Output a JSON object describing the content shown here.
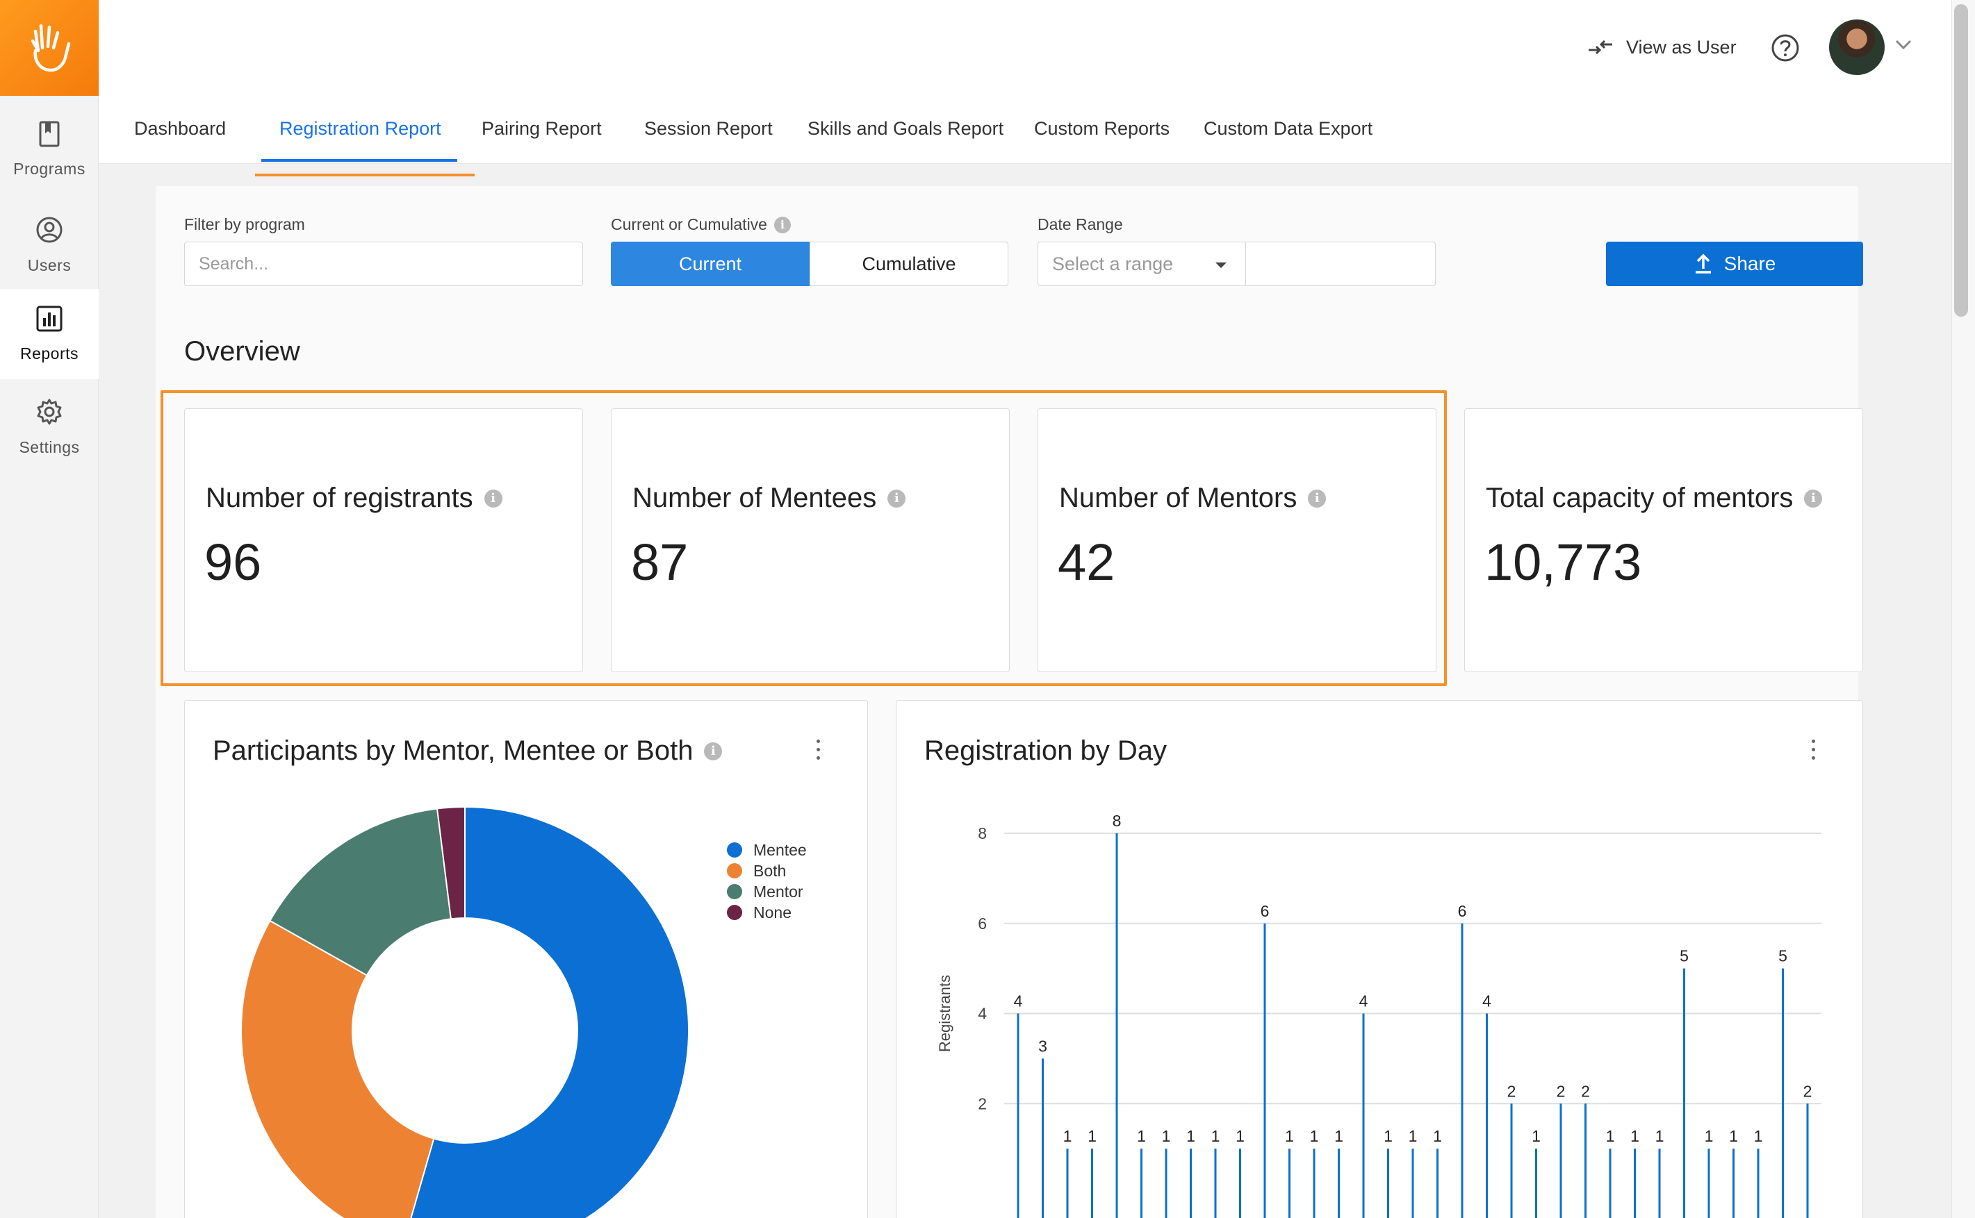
{
  "sidebar": {
    "items": [
      {
        "label": "Programs",
        "icon": "book-icon",
        "active": false
      },
      {
        "label": "Users",
        "icon": "user-circle-icon",
        "active": false
      },
      {
        "label": "Reports",
        "icon": "bar-chart-icon",
        "active": true
      },
      {
        "label": "Settings",
        "icon": "gear-icon",
        "active": false
      }
    ],
    "logo": "hand-logo"
  },
  "header": {
    "view_as_user": "View as User"
  },
  "tabs": [
    {
      "label": "Dashboard"
    },
    {
      "label": "Registration Report",
      "active": true
    },
    {
      "label": "Pairing Report"
    },
    {
      "label": "Session Report"
    },
    {
      "label": "Skills and Goals Report"
    },
    {
      "label": "Custom Reports"
    },
    {
      "label": "Custom Data Export"
    }
  ],
  "filters": {
    "program_label": "Filter by program",
    "program_placeholder": "Search...",
    "mode_label": "Current or Cumulative",
    "mode_current": "Current",
    "mode_cumulative": "Cumulative",
    "date_label": "Date Range",
    "date_placeholder": "Select a range",
    "share_label": "Share"
  },
  "overview": {
    "title": "Overview",
    "cards": [
      {
        "label": "Number of registrants",
        "value": "96"
      },
      {
        "label": "Number of Mentees",
        "value": "87"
      },
      {
        "label": "Number of Mentors",
        "value": "42"
      },
      {
        "label": "Total capacity of mentors",
        "value": "10,773"
      }
    ]
  },
  "charts": {
    "participants_title": "Participants by Mentor, Mentee or Both",
    "registration_title": "Registration by Day"
  },
  "colors": {
    "accent": "#1a73e8",
    "brand_orange": "#f4912b",
    "share_button": "#0b6fd3",
    "mentee": "#0b6fd3",
    "both": "#ee8233",
    "mentor": "#4a7c6f",
    "none": "#6b2346"
  },
  "chart_data": [
    {
      "type": "pie",
      "title": "Participants by Mentor, Mentee or Both",
      "donut": true,
      "legend_position": "right",
      "categories": [
        "Mentee",
        "Both",
        "Mentor",
        "None"
      ],
      "values": [
        55,
        29,
        15,
        2
      ]
    },
    {
      "type": "bar",
      "title": "Registration by Day",
      "ylabel": "Registrants",
      "ylim": [
        0,
        8
      ],
      "yticks": [
        2,
        4,
        6,
        8
      ],
      "grid": true,
      "values": [
        4,
        3,
        1,
        1,
        8,
        1,
        1,
        1,
        1,
        1,
        6,
        1,
        1,
        1,
        4,
        1,
        1,
        1,
        6,
        4,
        2,
        1,
        2,
        2,
        1,
        1,
        1,
        5,
        1,
        1,
        1,
        5,
        2
      ]
    }
  ]
}
